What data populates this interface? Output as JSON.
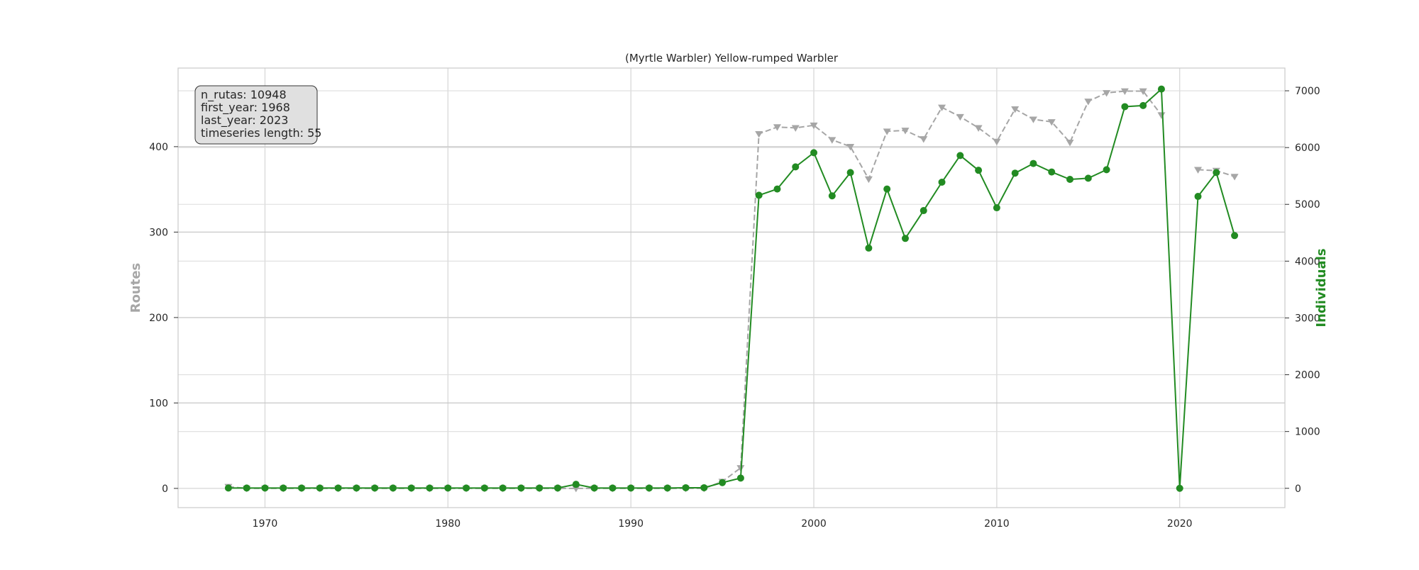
{
  "chart_data": {
    "type": "line",
    "title": "(Myrtle Warbler) Yellow-rumped Warbler",
    "xlabel": "",
    "ylabel_left": "Routes",
    "ylabel_right": "Individuals",
    "xlim": [
      1965.25,
      2025.75
    ],
    "ylim_left": [
      -22.5,
      492
    ],
    "ylim_right": [
      -340,
      7400
    ],
    "x_ticks": [
      1970,
      1980,
      1990,
      2000,
      2010,
      2020
    ],
    "y_left_ticks": [
      0,
      100,
      200,
      300,
      400
    ],
    "y_right_ticks": [
      0,
      1000,
      2000,
      3000,
      4000,
      5000,
      6000,
      7000
    ],
    "grid": true,
    "info_box": {
      "lines": [
        "n_rutas: 10948",
        "first_year: 1968",
        "last_year: 2023",
        "timeseries length: 55"
      ],
      "position": "top-left"
    },
    "colors": {
      "routes": "#a6a6a6",
      "individuals": "#228b22"
    },
    "x": [
      1968,
      1969,
      1970,
      1971,
      1972,
      1973,
      1974,
      1975,
      1976,
      1977,
      1978,
      1979,
      1980,
      1981,
      1982,
      1983,
      1984,
      1985,
      1986,
      1987,
      1988,
      1989,
      1990,
      1991,
      1992,
      1993,
      1994,
      1995,
      1996,
      1997,
      1998,
      1999,
      2000,
      2001,
      2002,
      2003,
      2004,
      2005,
      2006,
      2007,
      2008,
      2009,
      2010,
      2011,
      2012,
      2013,
      2014,
      2015,
      2016,
      2017,
      2018,
      2019,
      2020,
      2021,
      2022,
      2023
    ],
    "series": [
      {
        "name": "Routes",
        "axis": "left",
        "style": "dashed",
        "marker": "triangle-down",
        "values": [
          2,
          0,
          0,
          0,
          0,
          0,
          0,
          0,
          0,
          0,
          0,
          0,
          0,
          0,
          0,
          0,
          0,
          0,
          0,
          0,
          0,
          0,
          0,
          0,
          0,
          0,
          0,
          8,
          24,
          415,
          423,
          422,
          425,
          408,
          400,
          362,
          418,
          419,
          409,
          446,
          435,
          422,
          406,
          444,
          432,
          429,
          405,
          453,
          463,
          465,
          465,
          437,
          null,
          373,
          372,
          365
        ]
      },
      {
        "name": "Individuals",
        "axis": "right",
        "style": "solid",
        "marker": "circle",
        "values": [
          5,
          5,
          5,
          5,
          5,
          5,
          5,
          5,
          5,
          5,
          5,
          5,
          5,
          5,
          5,
          5,
          5,
          5,
          5,
          70,
          5,
          5,
          5,
          5,
          5,
          10,
          10,
          100,
          180,
          5160,
          5270,
          5660,
          5910,
          5150,
          5560,
          4230,
          5270,
          4400,
          4890,
          5390,
          5860,
          5600,
          4940,
          5550,
          5720,
          5570,
          5440,
          5460,
          5610,
          6720,
          6740,
          7030,
          0,
          5140,
          5560,
          4450
        ]
      }
    ]
  }
}
